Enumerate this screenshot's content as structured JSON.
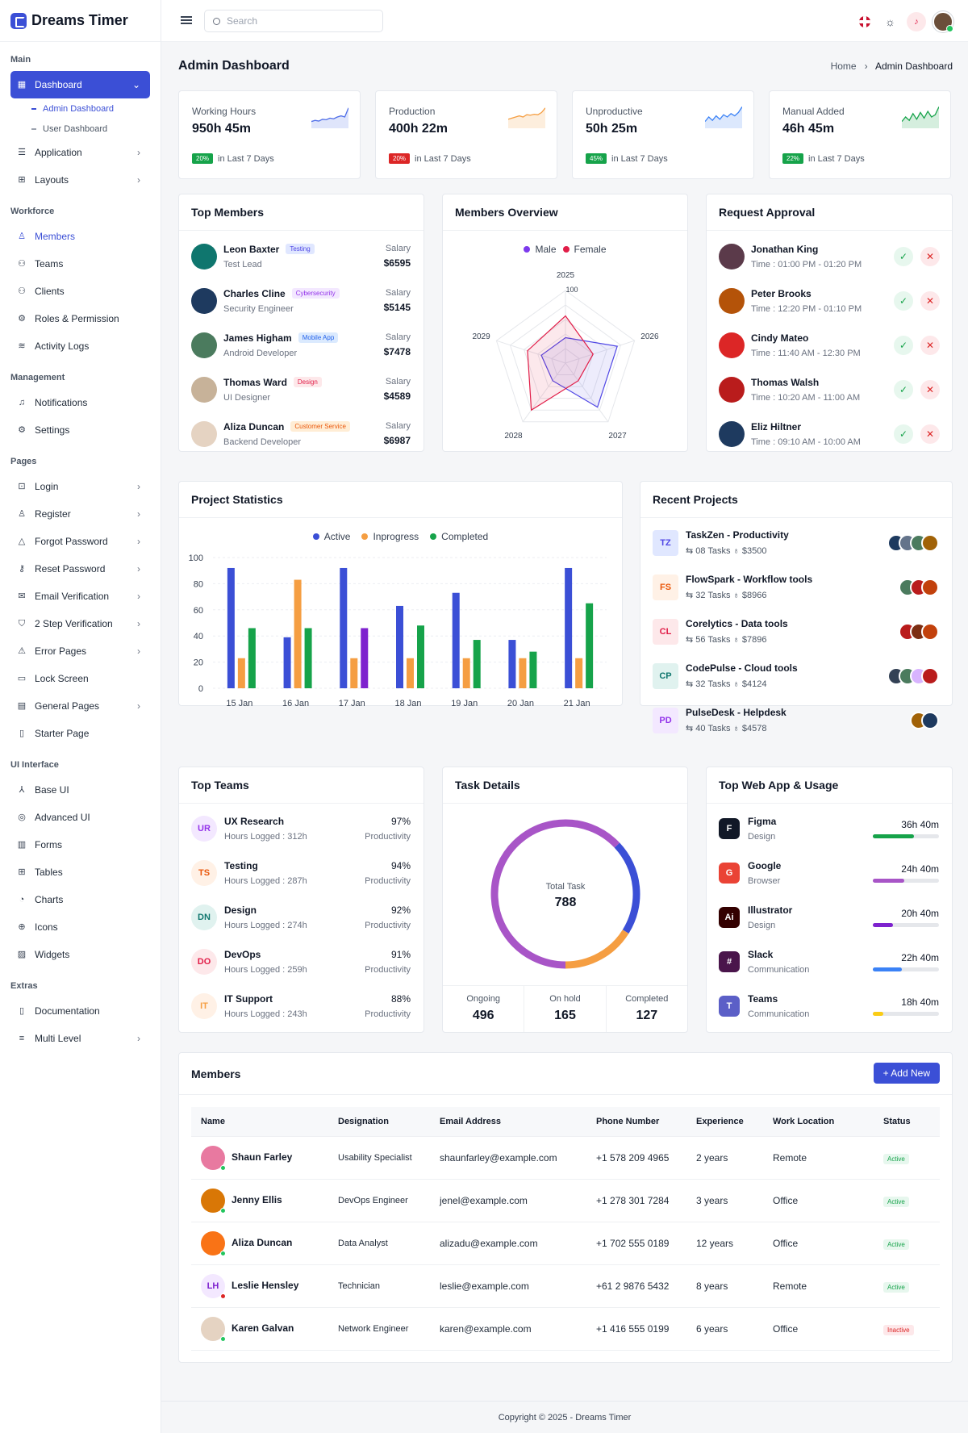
{
  "brand": {
    "name": "Dreams Timer"
  },
  "search": {
    "placeholder": "Search"
  },
  "sidebar": {
    "sections": [
      {
        "title": "Main",
        "items": [
          {
            "label": "Dashboard",
            "icon": "grid-icon",
            "active": true,
            "chevron": "⌄",
            "subs": [
              {
                "label": "Admin Dashboard",
                "on": true
              },
              {
                "label": "User Dashboard",
                "on": false
              }
            ]
          },
          {
            "label": "Application",
            "icon": "stack-icon",
            "chevron": "›"
          },
          {
            "label": "Layouts",
            "icon": "layout-icon",
            "chevron": "›"
          }
        ]
      },
      {
        "title": "Workforce",
        "items": [
          {
            "label": "Members",
            "icon": "user-icon",
            "blue": true
          },
          {
            "label": "Teams",
            "icon": "team-icon"
          },
          {
            "label": "Clients",
            "icon": "users-icon"
          },
          {
            "label": "Roles & Permission",
            "icon": "roles-icon"
          },
          {
            "label": "Activity Logs",
            "icon": "activity-icon"
          }
        ]
      },
      {
        "title": "Management",
        "items": [
          {
            "label": "Notifications",
            "icon": "bell-icon"
          },
          {
            "label": "Settings",
            "icon": "gear-icon"
          }
        ]
      },
      {
        "title": "Pages",
        "items": [
          {
            "label": "Login",
            "icon": "lock-icon",
            "chevron": "›"
          },
          {
            "label": "Register",
            "icon": "user-add-icon",
            "chevron": "›"
          },
          {
            "label": "Forgot Password",
            "icon": "warning-icon",
            "chevron": "›"
          },
          {
            "label": "Reset Password",
            "icon": "key-icon",
            "chevron": "›"
          },
          {
            "label": "Email Verification",
            "icon": "mail-icon",
            "chevron": "›"
          },
          {
            "label": "2 Step Verification",
            "icon": "shield-icon",
            "chevron": "›"
          },
          {
            "label": "Error Pages",
            "icon": "error-icon",
            "chevron": "›"
          },
          {
            "label": "Lock Screen",
            "icon": "screen-lock-icon"
          },
          {
            "label": "General Pages",
            "icon": "pages-icon",
            "chevron": "›"
          },
          {
            "label": "Starter Page",
            "icon": "file-icon"
          }
        ]
      },
      {
        "title": "UI Interface",
        "items": [
          {
            "label": "Base UI",
            "icon": "hierarchy-icon"
          },
          {
            "label": "Advanced UI",
            "icon": "target-icon"
          },
          {
            "label": "Forms",
            "icon": "forms-icon"
          },
          {
            "label": "Tables",
            "icon": "table-icon"
          },
          {
            "label": "Charts",
            "icon": "chart-icon"
          },
          {
            "label": "Icons",
            "icon": "icons-icon"
          },
          {
            "label": "Widgets",
            "icon": "map-icon"
          }
        ]
      },
      {
        "title": "Extras",
        "items": [
          {
            "label": "Documentation",
            "icon": "doc-icon"
          },
          {
            "label": "Multi Level",
            "icon": "menu-icon",
            "chevron": "›"
          }
        ]
      }
    ]
  },
  "page": {
    "title": "Admin Dashboard",
    "crumb_home": "Home",
    "crumb_current": "Admin Dashboard"
  },
  "stats": [
    {
      "label": "Working Hours",
      "value": "950h 45m",
      "change": "20%",
      "up": true,
      "period": "in Last 7 Days",
      "color": "#4f6ee8",
      "spark": [
        0.3,
        0.35,
        0.32,
        0.4,
        0.38,
        0.45,
        0.42,
        0.5,
        0.55,
        0.5,
        0.9
      ]
    },
    {
      "label": "Production",
      "value": "400h 22m",
      "change": "20%",
      "up": false,
      "period": "in Last 7 Days",
      "color": "#f59e42",
      "spark": [
        0.4,
        0.45,
        0.5,
        0.55,
        0.5,
        0.6,
        0.58,
        0.62,
        0.6,
        0.7,
        0.9
      ]
    },
    {
      "label": "Unproductive",
      "value": "50h 25m",
      "change": "45%",
      "up": true,
      "period": "in Last 7 Days",
      "color": "#3b82f6",
      "spark": [
        0.3,
        0.5,
        0.35,
        0.55,
        0.4,
        0.6,
        0.5,
        0.65,
        0.55,
        0.7,
        0.95
      ]
    },
    {
      "label": "Manual Added",
      "value": "46h 45m",
      "change": "22%",
      "up": true,
      "period": "in Last 7 Days",
      "color": "#16a34a",
      "spark": [
        0.3,
        0.5,
        0.35,
        0.65,
        0.4,
        0.7,
        0.45,
        0.75,
        0.5,
        0.6,
        0.95
      ]
    }
  ],
  "top_members": {
    "title": "Top Members",
    "salary_label": "Salary",
    "rows": [
      {
        "name": "Leon Baxter",
        "tag": "Testing",
        "tag_bg": "#e0e7ff",
        "tag_fg": "#4f46e5",
        "role": "Test Lead",
        "salary": "$6595",
        "av": "#0f766e"
      },
      {
        "name": "Charles Cline",
        "tag": "Cybersecurity",
        "tag_bg": "#f3e8ff",
        "tag_fg": "#9333ea",
        "role": "Security Engineer",
        "salary": "$5145",
        "av": "#1e3a5f"
      },
      {
        "name": "James Higham",
        "tag": "Mobile App",
        "tag_bg": "#dbeafe",
        "tag_fg": "#2563eb",
        "role": "Android Developer",
        "salary": "$7478",
        "av": "#4b7b5e"
      },
      {
        "name": "Thomas Ward",
        "tag": "Design",
        "tag_bg": "#fde8ea",
        "tag_fg": "#e11d48",
        "role": "UI Designer",
        "salary": "$4589",
        "av": "#c7b299"
      },
      {
        "name": "Aliza Duncan",
        "tag": "Customer Service",
        "tag_bg": "#ffedd5",
        "tag_fg": "#ea580c",
        "role": "Backend Developer",
        "salary": "$6987",
        "av": "#e5d3c2"
      }
    ]
  },
  "members_overview": {
    "title": "Members Overview",
    "legend": [
      {
        "name": "Male",
        "color": "#7c3aed"
      },
      {
        "name": "Female",
        "color": "#e11d48"
      }
    ]
  },
  "chart_data": [
    {
      "type": "radar",
      "axes": [
        "2025",
        "2026",
        "2027",
        "2028",
        "2029"
      ],
      "max": 100,
      "tick_label": "100",
      "series": [
        {
          "name": "Male",
          "color": "#4f46e5",
          "values": [
            35,
            75,
            75,
            30,
            35
          ]
        },
        {
          "name": "Female",
          "color": "#e11d48",
          "values": [
            65,
            40,
            30,
            80,
            55
          ]
        }
      ]
    },
    {
      "type": "bar",
      "title": "Project Statistics",
      "categories": [
        "15 Jan",
        "16 Jan",
        "17 Jan",
        "18 Jan",
        "19 Jan",
        "20  Jan",
        "21 Jan"
      ],
      "ylim": [
        0,
        100
      ],
      "yticks": [
        0,
        20,
        40,
        60,
        80,
        100
      ],
      "series": [
        {
          "name": "Active",
          "color": "#3b4fd6",
          "values": [
            92,
            39,
            92,
            63,
            73,
            37,
            92
          ]
        },
        {
          "name": "Inprogress",
          "color": "#f59e42",
          "values": [
            23,
            83,
            23,
            23,
            23,
            23,
            23
          ]
        },
        {
          "name": "Completed",
          "color": "#16a34a",
          "values": [
            46,
            46,
            46,
            48,
            37,
            28,
            65
          ]
        }
      ],
      "extra": {
        "index": 2,
        "series": "Completed",
        "color": "#7e22ce"
      }
    },
    {
      "type": "pie",
      "title": "Task Details",
      "center_label": "Total Task",
      "center_value": "788",
      "slices": [
        {
          "name": "Ongoing",
          "value": 496,
          "color": "#a855c7"
        },
        {
          "name": "On hold",
          "value": 165,
          "color": "#3b4fd6"
        },
        {
          "name": "Completed",
          "value": 127,
          "color": "#f59e42"
        }
      ]
    }
  ],
  "request_approval": {
    "title": "Request Approval",
    "rows": [
      {
        "name": "Jonathan King",
        "time": "Time : 01:00 PM - 01:20 PM",
        "av": "#5b3a4a"
      },
      {
        "name": "Peter Brooks",
        "time": "Time : 12:20 PM - 01:10 PM",
        "av": "#b45309"
      },
      {
        "name": "Cindy Mateo",
        "time": "Time : 11:40 AM - 12:30 PM",
        "av": "#dc2626"
      },
      {
        "name": "Thomas Walsh",
        "time": "Time : 10:20 AM - 11:00 AM",
        "av": "#b91c1c"
      },
      {
        "name": "Eliz Hiltner",
        "time": "Time : 09:10 AM - 10:00 AM",
        "av": "#1e3a5f"
      }
    ]
  },
  "project_statistics": {
    "title": "Project Statistics",
    "legend": [
      "Active",
      "Inprogress",
      "Completed"
    ]
  },
  "recent_projects": {
    "title": "Recent Projects",
    "rows": [
      {
        "badge": "TZ",
        "bg": "#e0e7ff",
        "fg": "#4f46e5",
        "name": "TaskZen - Productivity",
        "tasks": "08 Tasks",
        "amount": "$3500",
        "stack": [
          "#1e3a5f",
          "#64748b",
          "#4b7b5e",
          "#a16207"
        ]
      },
      {
        "badge": "FS",
        "bg": "#fff1e6",
        "fg": "#ea580c",
        "name": "FlowSpark - Workflow tools",
        "tasks": "32 Tasks",
        "amount": "$8966",
        "stack": [
          "#4b7b5e",
          "#b91c1c",
          "#c2410c"
        ]
      },
      {
        "badge": "CL",
        "bg": "#fde8ea",
        "fg": "#e11d48",
        "name": "Corelytics - Data tools",
        "tasks": "56 Tasks",
        "amount": "$7896",
        "stack": [
          "#b91c1c",
          "#7c2d12",
          "#c2410c"
        ]
      },
      {
        "badge": "CP",
        "bg": "#e0f2ef",
        "fg": "#0f766e",
        "name": "CodePulse - Cloud tools",
        "tasks": "32 Tasks",
        "amount": "$4124",
        "stack": [
          "#334155",
          "#4b7b5e",
          "#d8b4fe",
          "#b91c1c"
        ]
      },
      {
        "badge": "PD",
        "bg": "#f3e8ff",
        "fg": "#9333ea",
        "name": "PulseDesk - Helpdesk",
        "tasks": "40 Tasks",
        "amount": "$4578",
        "stack": [
          "#a16207",
          "#1e3a5f"
        ]
      }
    ]
  },
  "top_teams": {
    "title": "Top Teams",
    "rows": [
      {
        "badge": "UR",
        "bg": "#f3e8ff",
        "fg": "#9333ea",
        "name": "UX Research",
        "hours": "Hours Logged : 312h",
        "pct": "97%",
        "sub": "Productivity"
      },
      {
        "badge": "TS",
        "bg": "#fff1e6",
        "fg": "#ea580c",
        "name": "Testing",
        "hours": "Hours Logged : 287h",
        "pct": "94%",
        "sub": "Productivity"
      },
      {
        "badge": "DN",
        "bg": "#e0f2ef",
        "fg": "#0f766e",
        "name": "Design",
        "hours": "Hours Logged : 274h",
        "pct": "92%",
        "sub": "Productivity"
      },
      {
        "badge": "DO",
        "bg": "#fde8ea",
        "fg": "#e11d48",
        "name": "DevOps",
        "hours": "Hours Logged : 259h",
        "pct": "91%",
        "sub": "Productivity"
      },
      {
        "badge": "IT",
        "bg": "#fff1e6",
        "fg": "#f59e42",
        "name": "IT Support",
        "hours": "Hours Logged : 243h",
        "pct": "88%",
        "sub": "Productivity"
      }
    ]
  },
  "task_details": {
    "title": "Task Details",
    "center_label": "Total Task",
    "center_value": "788",
    "stats": [
      {
        "label": "Ongoing",
        "value": "496"
      },
      {
        "label": "On hold",
        "value": "165"
      },
      {
        "label": "Completed",
        "value": "127"
      }
    ]
  },
  "web_apps": {
    "title": "Top Web App & Usage",
    "rows": [
      {
        "name": "Figma",
        "cat": "Design",
        "time": "36h 40m",
        "level": 0.62,
        "color": "#16a34a",
        "icon": "figma-icon",
        "ibg": "#111827",
        "glyph": "F"
      },
      {
        "name": "Google",
        "cat": "Browser",
        "time": "24h 40m",
        "level": 0.48,
        "color": "#a855c7",
        "icon": "chrome-icon",
        "ibg": "#ea4335",
        "glyph": "G"
      },
      {
        "name": "Illustrator",
        "cat": "Design",
        "time": "20h 40m",
        "level": 0.3,
        "color": "#7e22ce",
        "icon": "illustrator-icon",
        "ibg": "#330000",
        "glyph": "Ai"
      },
      {
        "name": "Slack",
        "cat": "Communication",
        "time": "22h 40m",
        "level": 0.44,
        "color": "#3b82f6",
        "icon": "slack-icon",
        "ibg": "#4a154b",
        "glyph": "#"
      },
      {
        "name": "Teams",
        "cat": "Communication",
        "time": "18h 40m",
        "level": 0.16,
        "color": "#facc15",
        "icon": "teams-icon",
        "ibg": "#5b5fc7",
        "glyph": "T"
      }
    ]
  },
  "members_table": {
    "title": "Members",
    "add_label": "+ Add New",
    "columns": [
      "Name",
      "Designation",
      "Email Address",
      "Phone Number",
      "Experience",
      "Work Location",
      "Status"
    ],
    "rows": [
      {
        "name": "Shaun Farley",
        "designation": "Usability Specialist",
        "email": "shaunfarley@example.com",
        "phone": "+1 578 209 4965",
        "exp": "2 years",
        "loc": "Remote",
        "status": "Active",
        "active": true,
        "av": "#e879a0",
        "init": ""
      },
      {
        "name": "Jenny Ellis",
        "designation": "DevOps Engineer",
        "email": "jenel@example.com",
        "phone": "+1 278 301 7284",
        "exp": "3 years",
        "loc": "Office",
        "status": "Active",
        "active": true,
        "av": "#d97706",
        "init": ""
      },
      {
        "name": "Aliza Duncan",
        "designation": "Data Analyst",
        "email": "alizadu@example.com",
        "phone": "+1 702 555 0189",
        "exp": "12 years",
        "loc": "Office",
        "status": "Active",
        "active": true,
        "av": "#f97316",
        "init": ""
      },
      {
        "name": "Leslie Hensley",
        "designation": "Technician",
        "email": "leslie@example.com",
        "phone": "+61 2 9876 5432",
        "exp": "8 years",
        "loc": "Remote",
        "status": "Active",
        "active": true,
        "av": "#f3e8ff",
        "init": "LH",
        "dot": "#dc2626"
      },
      {
        "name": "Karen Galvan",
        "designation": "Network Engineer",
        "email": "karen@example.com",
        "phone": "+1 416 555 0199",
        "exp": "6 years",
        "loc": "Office",
        "status": "Inactive",
        "active": false,
        "av": "#e5d3c2",
        "init": ""
      }
    ]
  },
  "footer": {
    "text": "Copyright © 2025 - Dreams Timer"
  }
}
